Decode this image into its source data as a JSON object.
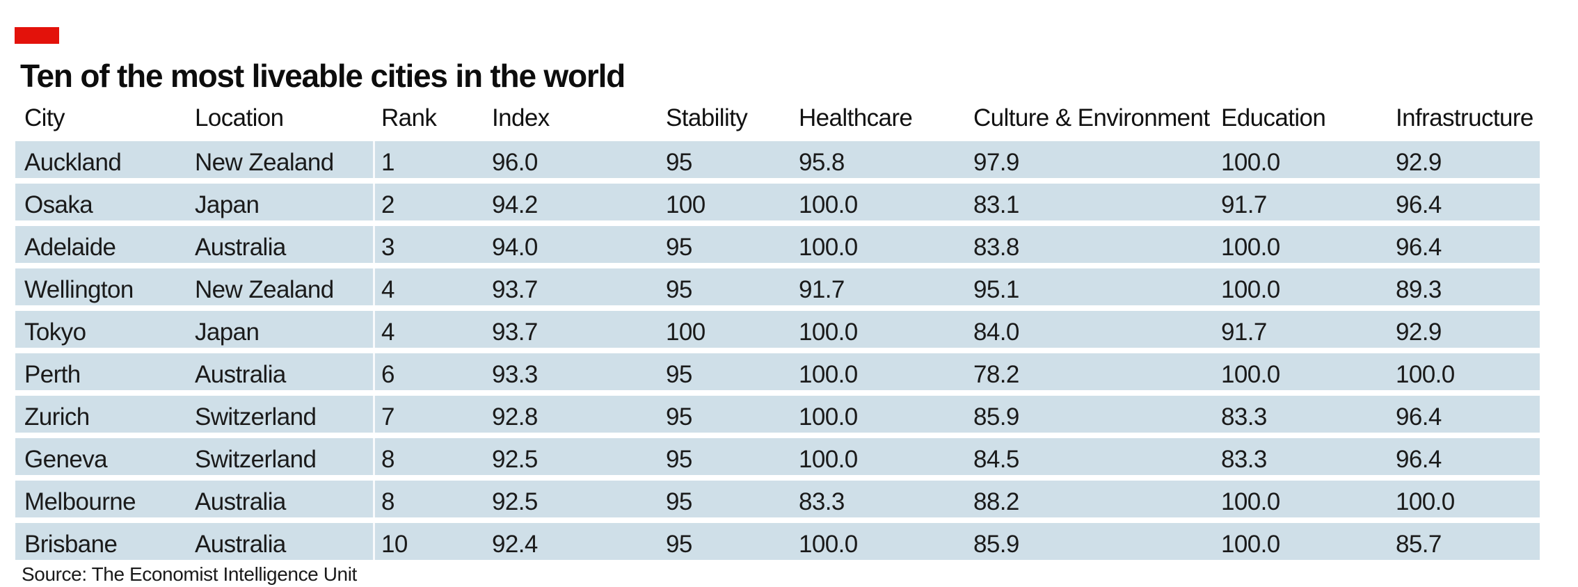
{
  "colors": {
    "brand_red": "#e3120b",
    "row_background": "#cfdfe8",
    "text": "#0d0d0d"
  },
  "chart_data": {
    "type": "table",
    "title": "Ten of the most liveable cities in the world",
    "columns": [
      "City",
      "Location",
      "Rank",
      "Index",
      "Stability",
      "Healthcare",
      "Culture & Environment",
      "Education",
      "Infrastructure"
    ],
    "rows": [
      [
        "Auckland",
        "New Zealand",
        "1",
        "96.0",
        "95",
        "95.8",
        "97.9",
        "100.0",
        "92.9"
      ],
      [
        "Osaka",
        "Japan",
        "2",
        "94.2",
        "100",
        "100.0",
        "83.1",
        "91.7",
        "96.4"
      ],
      [
        "Adelaide",
        "Australia",
        "3",
        "94.0",
        "95",
        "100.0",
        "83.8",
        "100.0",
        "96.4"
      ],
      [
        "Wellington",
        "New Zealand",
        "4",
        "93.7",
        "95",
        "91.7",
        "95.1",
        "100.0",
        "89.3"
      ],
      [
        "Tokyo",
        "Japan",
        "4",
        "93.7",
        "100",
        "100.0",
        "84.0",
        "91.7",
        "92.9"
      ],
      [
        "Perth",
        "Australia",
        "6",
        "93.3",
        "95",
        "100.0",
        "78.2",
        "100.0",
        "100.0"
      ],
      [
        "Zurich",
        "Switzerland",
        "7",
        "92.8",
        "95",
        "100.0",
        "85.9",
        "83.3",
        "96.4"
      ],
      [
        "Geneva",
        "Switzerland",
        "8",
        "92.5",
        "95",
        "100.0",
        "84.5",
        "83.3",
        "96.4"
      ],
      [
        "Melbourne",
        "Australia",
        "8",
        "92.5",
        "95",
        "83.3",
        "88.2",
        "100.0",
        "100.0"
      ],
      [
        "Brisbane",
        "Australia",
        "10",
        "92.4",
        "95",
        "100.0",
        "85.9",
        "100.0",
        "85.7"
      ]
    ],
    "source": "Source: The Economist Intelligence Unit",
    "legend_position": "none",
    "grid": false
  }
}
